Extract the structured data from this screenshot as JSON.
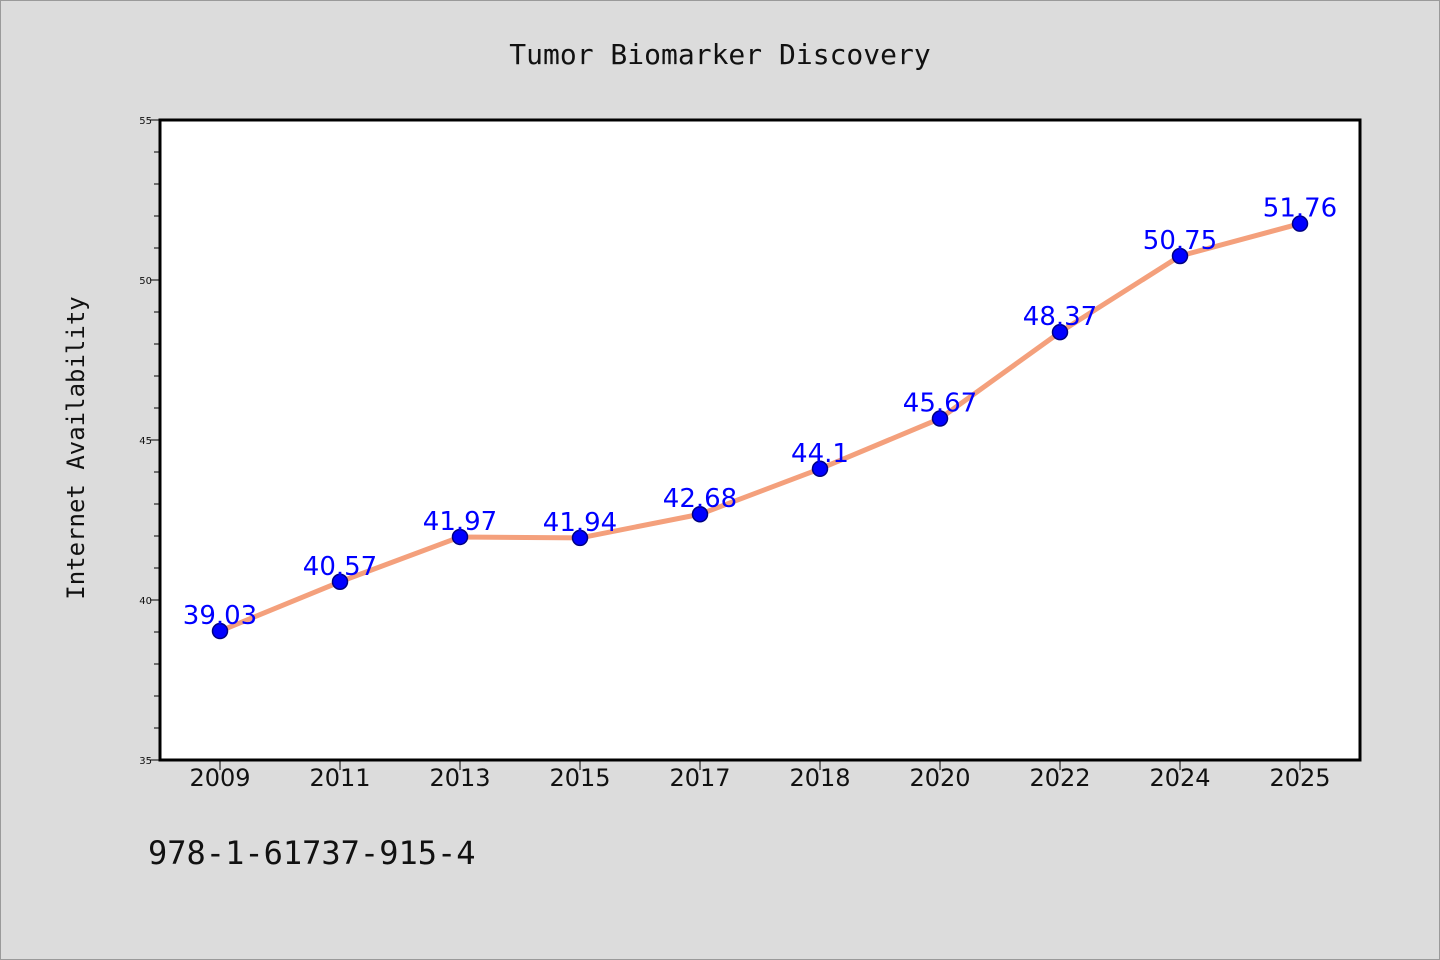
{
  "chart_data": {
    "type": "line",
    "title": "Tumor Biomarker Discovery",
    "xlabel": "",
    "ylabel": "Internet Availability",
    "categories": [
      "2009",
      "2011",
      "2013",
      "2015",
      "2017",
      "2018",
      "2020",
      "2022",
      "2024",
      "2025"
    ],
    "values": [
      39.03,
      40.57,
      41.97,
      41.94,
      42.68,
      44.1,
      45.67,
      48.37,
      50.75,
      51.76
    ],
    "data_labels": [
      "39.03",
      "40.57",
      "41.97",
      "41.94",
      "42.68",
      "44.1",
      "45.67",
      "48.37",
      "50.75",
      "51.76"
    ],
    "ylim": [
      35,
      55
    ],
    "yticks": [
      "35",
      "40",
      "45",
      "50",
      "55"
    ],
    "grid": false,
    "legend": "none",
    "colors": {
      "line": "#f4a07c",
      "marker": "#0000ff",
      "marker_edge": "#000080",
      "label": "#0000ff",
      "background": "#dcdcdc",
      "plot_background": "#ffffff"
    }
  },
  "footer_text": "978-1-61737-915-4"
}
